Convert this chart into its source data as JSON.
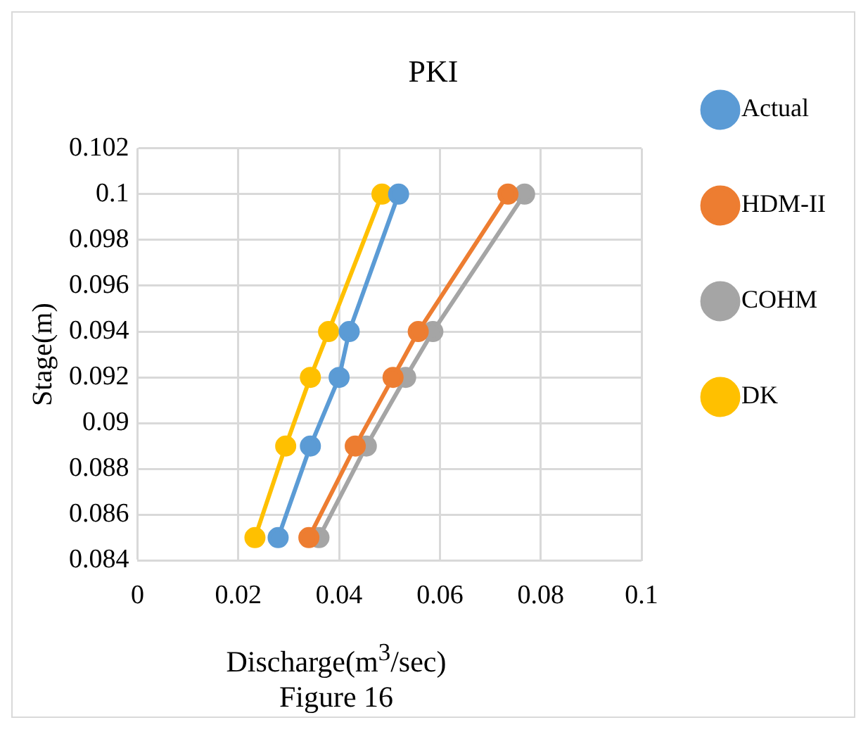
{
  "chart_data": {
    "type": "line",
    "title": "PKI",
    "xlabel": "Discharge(m$^{3}$/sec)",
    "ylabel": "Stage(m)",
    "annotations": [
      "Figure 16"
    ],
    "xlim": [
      0,
      0.1
    ],
    "xticks": [
      0,
      0.02,
      0.04,
      0.06,
      0.08,
      0.1
    ],
    "ylim": [
      0.084,
      0.102
    ],
    "yticks": [
      0.084,
      0.086,
      0.088,
      0.09,
      0.092,
      0.094,
      0.096,
      0.098,
      0.1,
      0.102
    ],
    "grid": true,
    "legend": "right",
    "marker": "circle",
    "line_style": "solid",
    "series": [
      {
        "name": "Actual",
        "color": "#5b9bd5",
        "x": [
          0.0518,
          0.042,
          0.04,
          0.0343,
          0.0279
        ],
        "values": [
          0.1,
          0.094,
          0.092,
          0.089,
          0.085
        ]
      },
      {
        "name": "HDM-II",
        "color": "#ed7d31",
        "x": [
          0.0735,
          0.0557,
          0.0507,
          0.0432,
          0.034
        ],
        "values": [
          0.1,
          0.094,
          0.092,
          0.089,
          0.085
        ]
      },
      {
        "name": "COHM",
        "color": "#a5a5a5",
        "x": [
          0.0768,
          0.0586,
          0.0532,
          0.0454,
          0.036
        ],
        "values": [
          0.1,
          0.094,
          0.092,
          0.089,
          0.085
        ]
      },
      {
        "name": "DK",
        "color": "#ffc000",
        "x": [
          0.0485,
          0.0379,
          0.0343,
          0.0294,
          0.0233
        ],
        "values": [
          0.1,
          0.094,
          0.092,
          0.089,
          0.085
        ]
      }
    ]
  }
}
